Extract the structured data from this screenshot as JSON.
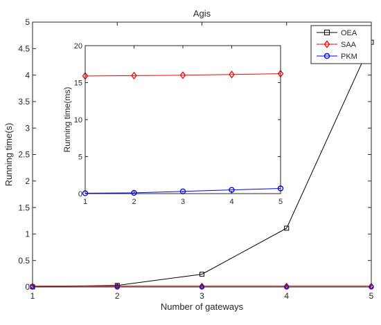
{
  "chart_data": [
    {
      "id": "main",
      "type": "line",
      "title": "Agis",
      "xlabel": "Number of gateways",
      "ylabel": "Running time(s)",
      "xlim": [
        1,
        5
      ],
      "ylim": [
        0,
        5
      ],
      "xticks": [
        1,
        2,
        3,
        4,
        5
      ],
      "xtick_labels": [
        "1",
        "2",
        "3",
        "4",
        "5"
      ],
      "yticks": [
        0,
        0.5,
        1,
        1.5,
        2,
        2.5,
        3,
        3.5,
        4,
        4.5,
        5
      ],
      "ytick_labels": [
        "0",
        "0.5",
        "1",
        "1.5",
        "2",
        "2.5",
        "3",
        "3.5",
        "4",
        "4.5",
        "5"
      ],
      "grid": false,
      "legend_position": "top-right",
      "x": [
        1,
        2,
        3,
        4,
        5
      ],
      "series": [
        {
          "name": "OEA",
          "color": "#000000",
          "marker": "square",
          "values": [
            0.003,
            0.03,
            0.24,
            1.11,
            4.62
          ]
        },
        {
          "name": "SAA",
          "color": "#ff0000",
          "marker": "diamond",
          "values": [
            0.016,
            0.016,
            0.016,
            0.016,
            0.016
          ]
        },
        {
          "name": "PKM",
          "color": "#0000ff",
          "marker": "circle",
          "values": [
            0.0001,
            0.0001,
            0.0003,
            0.0005,
            0.0007
          ]
        }
      ]
    },
    {
      "id": "inset",
      "type": "line",
      "title": "",
      "xlabel": "",
      "ylabel": "Running time(ms)",
      "xlim": [
        1,
        5
      ],
      "ylim": [
        0,
        20
      ],
      "xticks": [
        1,
        2,
        3,
        4,
        5
      ],
      "xtick_labels": [
        "1",
        "2",
        "3",
        "4",
        "5"
      ],
      "yticks": [
        0,
        5,
        10,
        15,
        20
      ],
      "ytick_labels": [
        "0",
        "5",
        "10",
        "15",
        "20"
      ],
      "grid": false,
      "x": [
        1,
        2,
        3,
        4,
        5
      ],
      "series": [
        {
          "name": "SAA",
          "color": "#ff0000",
          "marker": "diamond",
          "values": [
            15.9,
            15.95,
            16.0,
            16.1,
            16.2
          ]
        },
        {
          "name": "PKM",
          "color": "#0000ff",
          "marker": "circle",
          "values": [
            0.05,
            0.1,
            0.3,
            0.5,
            0.7
          ]
        }
      ]
    }
  ]
}
